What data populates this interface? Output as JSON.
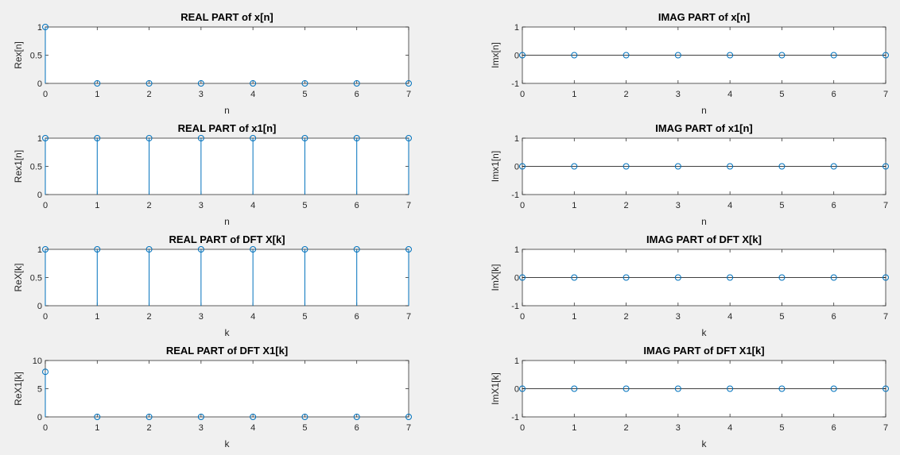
{
  "colors": {
    "figure_bg": "#f0f0f0",
    "axes_bg": "#ffffff",
    "axis": "#262626",
    "stem": "#0072bd",
    "baseline": "#000000"
  },
  "chart_data": [
    {
      "type": "stem",
      "title": "REAL PART of x[n]",
      "xlabel": "n",
      "ylabel": "Rex[n]",
      "x": [
        0,
        1,
        2,
        3,
        4,
        5,
        6,
        7
      ],
      "y": [
        1,
        0,
        0,
        0,
        0,
        0,
        0,
        0
      ],
      "xlim": [
        0,
        7
      ],
      "ylim": [
        0,
        1
      ],
      "xticks": [
        0,
        1,
        2,
        3,
        4,
        5,
        6,
        7
      ],
      "yticks": [
        0,
        0.5,
        1
      ],
      "ytick_labels": [
        "0",
        "0.5",
        "1"
      ],
      "baseline": false
    },
    {
      "type": "stem",
      "title": "IMAG PART of x[n]",
      "xlabel": "n",
      "ylabel": "Imx[n]",
      "x": [
        0,
        1,
        2,
        3,
        4,
        5,
        6,
        7
      ],
      "y": [
        0,
        0,
        0,
        0,
        0,
        0,
        0,
        0
      ],
      "xlim": [
        0,
        7
      ],
      "ylim": [
        -1,
        1
      ],
      "xticks": [
        0,
        1,
        2,
        3,
        4,
        5,
        6,
        7
      ],
      "yticks": [
        -1,
        0,
        1
      ],
      "ytick_labels": [
        "-1",
        "0",
        "1"
      ],
      "baseline": true
    },
    {
      "type": "stem",
      "title": "REAL PART of x1[n]",
      "xlabel": "n",
      "ylabel": "Rex1[n]",
      "x": [
        0,
        1,
        2,
        3,
        4,
        5,
        6,
        7
      ],
      "y": [
        1,
        1,
        1,
        1,
        1,
        1,
        1,
        1
      ],
      "xlim": [
        0,
        7
      ],
      "ylim": [
        0,
        1
      ],
      "xticks": [
        0,
        1,
        2,
        3,
        4,
        5,
        6,
        7
      ],
      "yticks": [
        0,
        0.5,
        1
      ],
      "ytick_labels": [
        "0",
        "0.5",
        "1"
      ],
      "baseline": false
    },
    {
      "type": "stem",
      "title": "IMAG PART of x1[n]",
      "xlabel": "n",
      "ylabel": "Imx1[n]",
      "x": [
        0,
        1,
        2,
        3,
        4,
        5,
        6,
        7
      ],
      "y": [
        0,
        0,
        0,
        0,
        0,
        0,
        0,
        0
      ],
      "xlim": [
        0,
        7
      ],
      "ylim": [
        -1,
        1
      ],
      "xticks": [
        0,
        1,
        2,
        3,
        4,
        5,
        6,
        7
      ],
      "yticks": [
        -1,
        0,
        1
      ],
      "ytick_labels": [
        "-1",
        "0",
        "1"
      ],
      "baseline": true
    },
    {
      "type": "stem",
      "title": "REAL PART of DFT X[k]",
      "xlabel": "k",
      "ylabel": "ReX[k]",
      "x": [
        0,
        1,
        2,
        3,
        4,
        5,
        6,
        7
      ],
      "y": [
        1,
        1,
        1,
        1,
        1,
        1,
        1,
        1
      ],
      "xlim": [
        0,
        7
      ],
      "ylim": [
        0,
        1
      ],
      "xticks": [
        0,
        1,
        2,
        3,
        4,
        5,
        6,
        7
      ],
      "yticks": [
        0,
        0.5,
        1
      ],
      "ytick_labels": [
        "0",
        "0.5",
        "1"
      ],
      "baseline": false
    },
    {
      "type": "stem",
      "title": "IMAG PART of DFT X[k]",
      "xlabel": "k",
      "ylabel": "ImX[k]",
      "x": [
        0,
        1,
        2,
        3,
        4,
        5,
        6,
        7
      ],
      "y": [
        0,
        0,
        0,
        0,
        0,
        0,
        0,
        0
      ],
      "xlim": [
        0,
        7
      ],
      "ylim": [
        -1,
        1
      ],
      "xticks": [
        0,
        1,
        2,
        3,
        4,
        5,
        6,
        7
      ],
      "yticks": [
        -1,
        0,
        1
      ],
      "ytick_labels": [
        "-1",
        "0",
        "1"
      ],
      "baseline": true
    },
    {
      "type": "stem",
      "title": "REAL PART of DFT X1[k]",
      "xlabel": "k",
      "ylabel": "ReX1[k]",
      "x": [
        0,
        1,
        2,
        3,
        4,
        5,
        6,
        7
      ],
      "y": [
        8,
        0,
        0,
        0,
        0,
        0,
        0,
        0
      ],
      "xlim": [
        0,
        7
      ],
      "ylim": [
        0,
        10
      ],
      "xticks": [
        0,
        1,
        2,
        3,
        4,
        5,
        6,
        7
      ],
      "yticks": [
        0,
        5,
        10
      ],
      "ytick_labels": [
        "0",
        "5",
        "10"
      ],
      "baseline": false
    },
    {
      "type": "stem",
      "title": "IMAG PART of DFT X1[k]",
      "xlabel": "k",
      "ylabel": "ImX1[k]",
      "x": [
        0,
        1,
        2,
        3,
        4,
        5,
        6,
        7
      ],
      "y": [
        0,
        0,
        0,
        0,
        0,
        0,
        0,
        0
      ],
      "xlim": [
        0,
        7
      ],
      "ylim": [
        -1,
        1
      ],
      "xticks": [
        0,
        1,
        2,
        3,
        4,
        5,
        6,
        7
      ],
      "yticks": [
        -1,
        0,
        1
      ],
      "ytick_labels": [
        "-1",
        "0",
        "1"
      ],
      "baseline": true
    }
  ]
}
